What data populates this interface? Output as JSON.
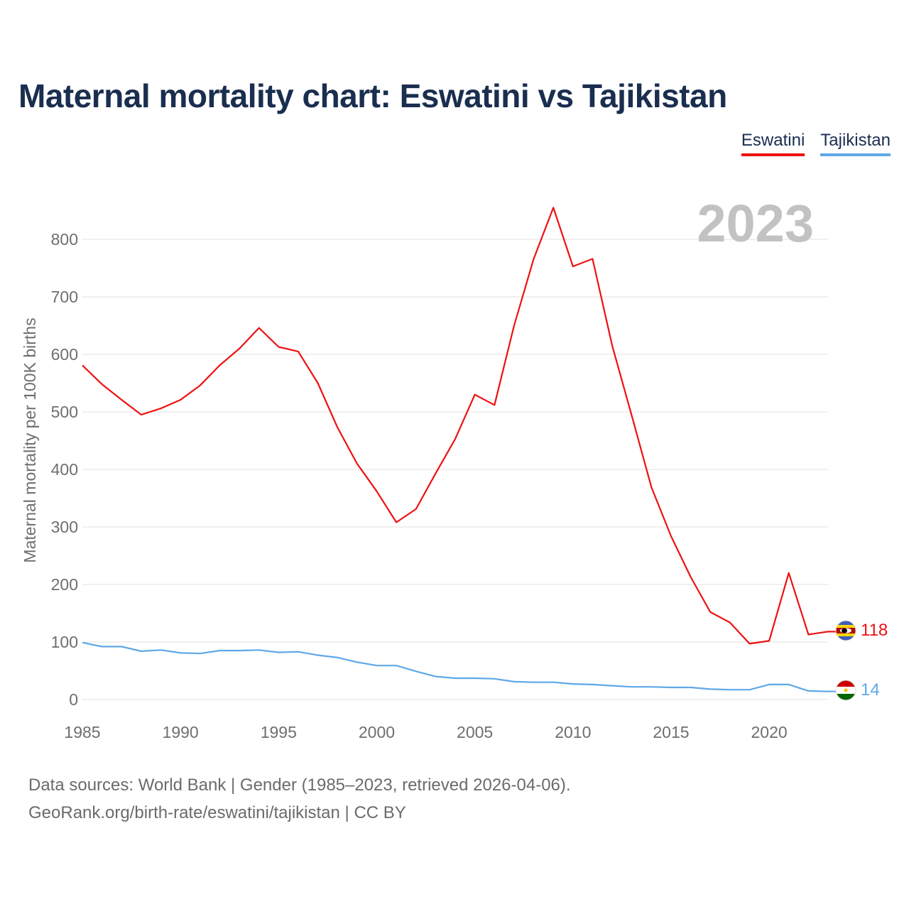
{
  "header": {
    "title": "Maternal mortality chart: Eswatini vs Tajikistan"
  },
  "legend": [
    {
      "label": "Eswatini",
      "color": "#ee1111"
    },
    {
      "label": "Tajikistan",
      "color": "#5fa8e8"
    }
  ],
  "footer": {
    "source_line1": "Data sources: World Bank | Gender (1985–2023, retrieved 2026-04-06).",
    "source_line2": "GeoRank.org/birth-rate/eswatini/tajikistan | CC BY"
  },
  "chart_data": {
    "type": "line",
    "title": "Maternal mortality chart: Eswatini vs Tajikistan",
    "ylabel": "Maternal mortality per 100K births",
    "xlabel": "",
    "year_watermark": "2023",
    "x": [
      1985,
      1986,
      1987,
      1988,
      1989,
      1990,
      1991,
      1992,
      1993,
      1994,
      1995,
      1996,
      1997,
      1998,
      1999,
      2000,
      2001,
      2002,
      2003,
      2004,
      2005,
      2006,
      2007,
      2008,
      2009,
      2010,
      2011,
      2012,
      2013,
      2014,
      2015,
      2016,
      2017,
      2018,
      2019,
      2020,
      2021,
      2022,
      2023
    ],
    "xlim": [
      1985,
      2023
    ],
    "ylim": [
      0,
      840
    ],
    "x_ticks": [
      1985,
      1990,
      1995,
      2000,
      2005,
      2010,
      2015,
      2020
    ],
    "y_ticks": [
      0,
      100,
      200,
      300,
      400,
      500,
      600,
      700,
      800
    ],
    "grid": true,
    "legend_position": "top-right",
    "series": [
      {
        "name": "Eswatini",
        "color": "#ee1111",
        "end_label": "118",
        "values": [
          581,
          548,
          521,
          495,
          506,
          521,
          546,
          581,
          610,
          646,
          613,
          605,
          550,
          473,
          410,
          362,
          308,
          331,
          393,
          453,
          530,
          512,
          650,
          766,
          855,
          753,
          766,
          615,
          493,
          369,
          284,
          213,
          152,
          134,
          97,
          102,
          220,
          113,
          118
        ]
      },
      {
        "name": "Tajikistan",
        "color": "#5fa8e8",
        "end_label": "14",
        "values": [
          99,
          92,
          92,
          84,
          86,
          81,
          80,
          85,
          85,
          86,
          82,
          83,
          77,
          73,
          65,
          59,
          59,
          49,
          40,
          37,
          37,
          36,
          31,
          30,
          30,
          27,
          26,
          24,
          22,
          22,
          21,
          21,
          18,
          17,
          17,
          26,
          26,
          15,
          14
        ]
      }
    ]
  }
}
